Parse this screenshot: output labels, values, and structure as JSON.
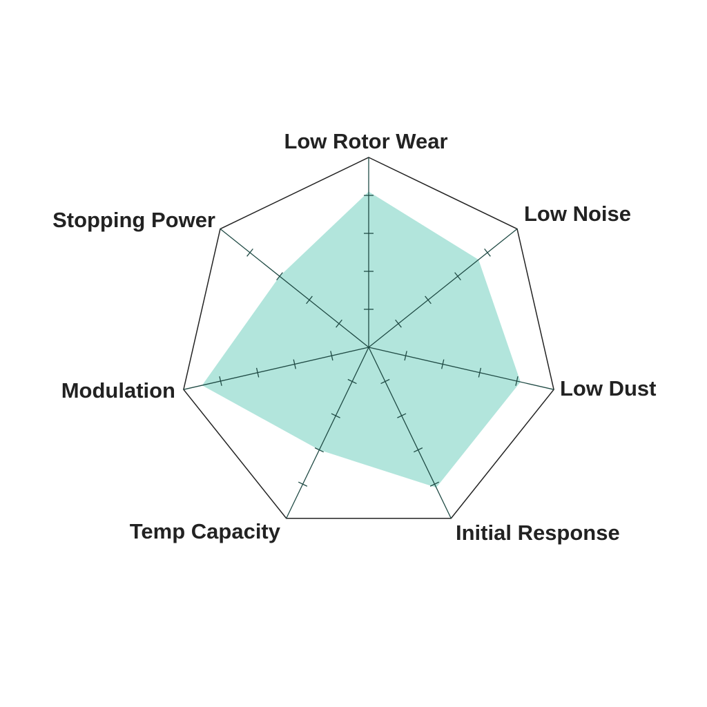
{
  "chart_data": {
    "type": "radar",
    "title": "",
    "axes": [
      "Low Rotor Wear",
      "Low Noise",
      "Low Dust",
      "Initial Response",
      "Temp Capacity",
      "Modulation",
      "Stopping Power"
    ],
    "range": [
      0,
      5
    ],
    "tick_count": 5,
    "grid": true,
    "series": [
      {
        "values": [
          4.1,
          3.7,
          4.1,
          4.1,
          3.0,
          4.5,
          3.0
        ]
      }
    ],
    "colors": {
      "fill": "#b2e5dc",
      "axis": "#1f4a44",
      "outline": "#222222"
    }
  }
}
